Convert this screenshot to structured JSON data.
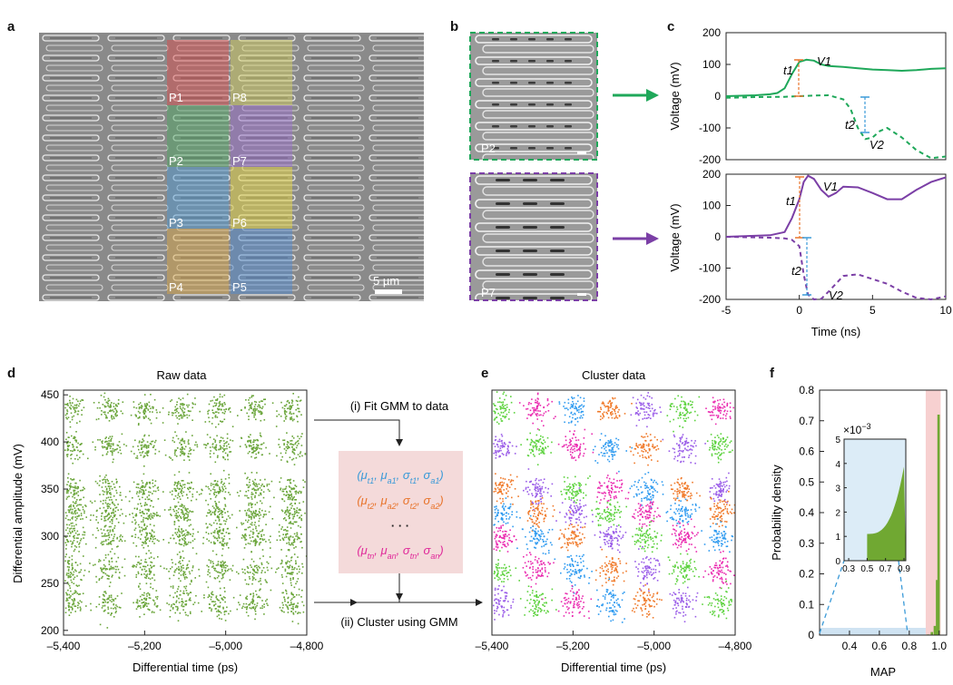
{
  "panel_labels": {
    "a": "a",
    "b": "b",
    "c": "c",
    "d": "d",
    "e": "e",
    "f": "f"
  },
  "panel_a": {
    "pixel_labels": [
      "P1",
      "P8",
      "P2",
      "P7",
      "P3",
      "P6",
      "P4",
      "P5"
    ],
    "scale_bar": "5 µm"
  },
  "panel_b": {
    "top_label": "P2",
    "bottom_label": "P7"
  },
  "colors": {
    "green": "#1fa85a",
    "purple": "#7b3fa6",
    "orange": "#e8742c",
    "blue": "#3a9ad8",
    "gmm_green": "#6aa53a",
    "hist_green": "#70a832",
    "hist_band": "#f7d0d0",
    "inset_bg": "#dcecf7"
  },
  "chart_data": [
    {
      "id": "c-top",
      "type": "line",
      "xlabel": "Time (ns)",
      "ylabel": "Voltage (mV)",
      "xlim": [
        -5,
        10
      ],
      "ylim": [
        -200,
        200
      ],
      "yticks": [
        "200",
        "100",
        "0",
        "-100",
        "-200"
      ],
      "series": [
        {
          "name": "V1",
          "style": "solid",
          "color": "#1fa85a",
          "x": [
            -5,
            -3,
            -2,
            -1.5,
            -1,
            -0.5,
            0,
            0.5,
            1,
            1.5,
            2,
            3,
            4,
            5,
            6,
            7,
            8,
            9,
            10
          ],
          "y": [
            0,
            3,
            6,
            10,
            25,
            70,
            108,
            115,
            112,
            100,
            95,
            92,
            88,
            84,
            82,
            80,
            82,
            86,
            88
          ]
        },
        {
          "name": "V2",
          "style": "dashed",
          "color": "#1fa85a",
          "x": [
            -5,
            -3,
            -1,
            0,
            1,
            2,
            3,
            3.5,
            4,
            4.5,
            5,
            5.5,
            6,
            7,
            8,
            9,
            10
          ],
          "y": [
            -5,
            -3,
            -2,
            0,
            2,
            3,
            -10,
            -40,
            -100,
            -135,
            -130,
            -110,
            -100,
            -130,
            -170,
            -195,
            -190
          ]
        }
      ],
      "annotations": {
        "t1": "t1",
        "v1": "V1",
        "t2": "t2",
        "v2": "V2"
      }
    },
    {
      "id": "c-bottom",
      "type": "line",
      "xlabel": "Time (ns)",
      "ylabel": "Voltage (mV)",
      "xlim": [
        -5,
        10
      ],
      "ylim": [
        -200,
        200
      ],
      "xticks": [
        "-5",
        "0",
        "5",
        "10"
      ],
      "yticks": [
        "200",
        "100",
        "0",
        "-100",
        "-200"
      ],
      "series": [
        {
          "name": "V1",
          "style": "solid",
          "color": "#7b3fa6",
          "x": [
            -5,
            -2,
            -1,
            -0.5,
            0,
            0.3,
            0.6,
            1,
            1.5,
            2,
            2.5,
            3,
            4,
            5,
            6,
            7,
            8,
            9,
            10
          ],
          "y": [
            0,
            5,
            15,
            60,
            120,
            175,
            195,
            185,
            150,
            128,
            140,
            160,
            158,
            140,
            120,
            120,
            150,
            175,
            190
          ]
        },
        {
          "name": "V2",
          "style": "dashed",
          "color": "#7b3fa6",
          "x": [
            -5,
            -2,
            -1,
            -0.5,
            0,
            0.3,
            0.6,
            1,
            1.5,
            2,
            3,
            4,
            5,
            6,
            7,
            8,
            9,
            10
          ],
          "y": [
            0,
            -3,
            -5,
            -10,
            -30,
            -120,
            -185,
            -200,
            -198,
            -175,
            -125,
            -120,
            -135,
            -150,
            -175,
            -195,
            -200,
            -190
          ]
        }
      ],
      "annotations": {
        "t1": "t1",
        "v1": "V1",
        "t2": "t2",
        "v2": "V2"
      }
    },
    {
      "id": "d",
      "type": "scatter",
      "title": "Raw data",
      "xlabel": "Differential time (ps)",
      "ylabel": "Differential amplitude (mV)",
      "xlim": [
        -5400,
        -4800
      ],
      "ylim": [
        195,
        455
      ],
      "xticks": [
        "–5,400",
        "–5,200",
        "–5,000",
        "–4,800"
      ],
      "yticks": [
        "450",
        "400",
        "350",
        "300",
        "250",
        "200"
      ],
      "cluster_x": [
        -5380,
        -5290,
        -5200,
        -5110,
        -5020,
        -4930,
        -4840
      ],
      "cluster_y": [
        435,
        395,
        350,
        325,
        300,
        265,
        230
      ],
      "color": "#6aa53a"
    },
    {
      "id": "e",
      "type": "scatter",
      "title": "Cluster data",
      "xlabel": "Differential time (ps)",
      "xlim": [
        -5400,
        -4800
      ],
      "ylim": [
        195,
        455
      ],
      "xticks": [
        "–5,400",
        "–5,200",
        "–5,000",
        "–4,800"
      ],
      "cluster_x": [
        -5380,
        -5290,
        -5200,
        -5110,
        -5020,
        -4930,
        -4840
      ],
      "cluster_y": [
        435,
        395,
        350,
        325,
        300,
        265,
        230
      ],
      "palette": [
        "#5bd23c",
        "#f07a2a",
        "#ea2bb0",
        "#9a5ce8",
        "#2f9bf0"
      ]
    },
    {
      "id": "f",
      "type": "bar",
      "xlabel": "MAP",
      "ylabel": "Probability density",
      "xlim": [
        0.2,
        1.05
      ],
      "ylim": [
        0,
        0.8
      ],
      "xticks": [
        "0.4",
        "0.6",
        "0.8",
        "1.0"
      ],
      "yticks": [
        "0.8",
        "0.7",
        "0.6",
        "0.5",
        "0.4",
        "0.3",
        "0.2",
        "0.1",
        "0"
      ],
      "bins": [
        0.93,
        0.955,
        0.975,
        0.99,
        1.0
      ],
      "values": [
        0.002,
        0.01,
        0.03,
        0.18,
        0.72
      ],
      "inset": {
        "multiplier": "×10",
        "exponent": "−3",
        "xticks": [
          "0.3",
          "0.5",
          "0.7",
          "0.9"
        ],
        "yticks": [
          "5",
          "4",
          "3",
          "2",
          "1",
          "0"
        ]
      }
    }
  ],
  "gmm_box": {
    "step1": "(i) Fit GMM to data",
    "step2": "(ii) Cluster using GMM",
    "dots": "· · ·"
  }
}
